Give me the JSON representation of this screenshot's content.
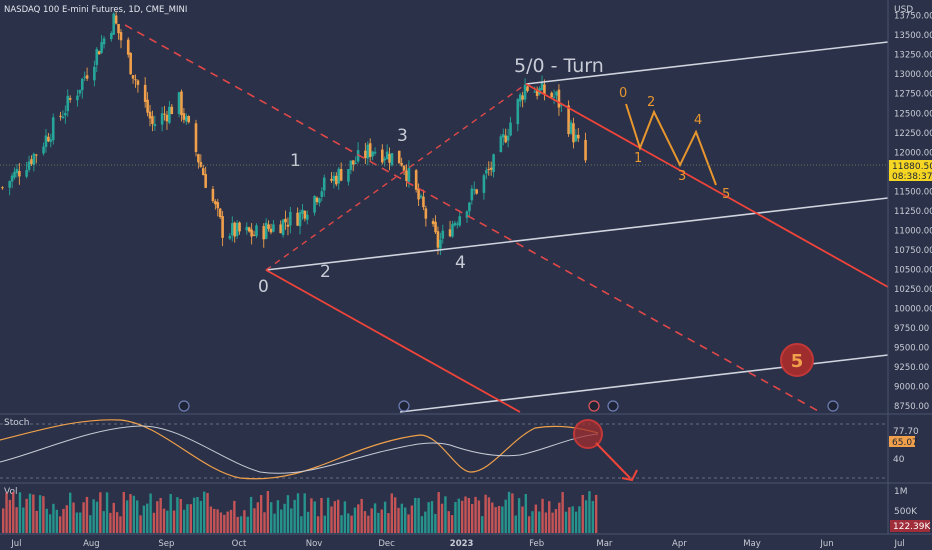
{
  "header": {
    "symbol_title": "NASDAQ 100 E-mini Futures, 1D, CME_MINI",
    "currency": "USD"
  },
  "colors": {
    "background": "#2a3148",
    "up": "#26a69a",
    "down": "#f0a04b",
    "channel_red": "#f0443a",
    "channel_white": "#d0d4de",
    "wave_orange": "#e8962e",
    "wave_label_white": "#c9ccd6",
    "stoch_k": "#f0a04b",
    "stoch_d": "#c9ccd6",
    "price_tag": "#f5d623"
  },
  "chart_data": [
    {
      "type": "candlestick",
      "name": "NASDAQ 100 E-mini Futures",
      "x_ticks": [
        "Jul",
        "Aug",
        "Sep",
        "Oct",
        "Nov",
        "Dec",
        "2023",
        "Feb",
        "Mar",
        "Apr",
        "May",
        "Jun",
        "Jul"
      ],
      "y_ticks": [
        13750.0,
        13500.0,
        13250.0,
        13000.0,
        12750.0,
        12500.0,
        12250.0,
        12000.0,
        11750.0,
        11500.0,
        11250.0,
        11000.0,
        10750.0,
        10500.0,
        10250.0,
        10000.0,
        9750.0,
        9500.0,
        9250.0,
        9000.0,
        8750.0
      ],
      "ylim": [
        8650,
        13950
      ],
      "last_price": "11880.50",
      "countdown": "08:38:37",
      "wave_labels_elliott": [
        {
          "label": "0",
          "date": "2022-10-13",
          "value": 10480
        },
        {
          "label": "1",
          "date": "2022-11-01",
          "value": 11950
        },
        {
          "label": "2",
          "date": "2022-11-10",
          "value": 10680
        },
        {
          "label": "3",
          "date": "2022-12-13",
          "value": 12350
        },
        {
          "label": "4",
          "date": "2022-12-28",
          "value": 10760
        },
        {
          "label": "5/0 - Turn",
          "date": "2023-02-02",
          "value": 13100
        }
      ],
      "projection_labels": [
        {
          "label": "0",
          "date": "2023-03-15",
          "value": 12820
        },
        {
          "label": "1",
          "date": "2023-03-22",
          "value": 12000
        },
        {
          "label": "2",
          "date": "2023-03-29",
          "value": 12720
        },
        {
          "label": "3",
          "date": "2023-04-12",
          "value": 11840
        },
        {
          "label": "4",
          "date": "2023-04-19",
          "value": 12550
        },
        {
          "label": "5",
          "date": "2023-04-28",
          "value": 11570
        }
      ],
      "circled_target_label": "5",
      "approx_candles": [
        {
          "date": "2022-07-01",
          "open": 11700,
          "high": 11800,
          "low": 11450,
          "close": 11550
        },
        {
          "date": "2022-07-15",
          "open": 11700,
          "high": 12100,
          "low": 11650,
          "close": 12000
        },
        {
          "date": "2022-08-01",
          "open": 12600,
          "high": 12900,
          "low": 12500,
          "close": 12800
        },
        {
          "date": "2022-08-16",
          "open": 13550,
          "high": 13770,
          "low": 13450,
          "close": 13700
        },
        {
          "date": "2022-09-01",
          "open": 12500,
          "high": 12600,
          "low": 12250,
          "close": 12350
        },
        {
          "date": "2022-09-12",
          "open": 12600,
          "high": 12800,
          "low": 12450,
          "close": 12650
        },
        {
          "date": "2022-09-30",
          "open": 11200,
          "high": 11300,
          "low": 10950,
          "close": 11000
        },
        {
          "date": "2022-10-13",
          "open": 10800,
          "high": 11050,
          "low": 10490,
          "close": 10950
        },
        {
          "date": "2022-11-01",
          "open": 11500,
          "high": 11700,
          "low": 11100,
          "close": 11200
        },
        {
          "date": "2022-11-10",
          "open": 10900,
          "high": 11650,
          "low": 10680,
          "close": 11550
        },
        {
          "date": "2022-12-01",
          "open": 11950,
          "high": 12150,
          "low": 11850,
          "close": 12050
        },
        {
          "date": "2022-12-13",
          "open": 11950,
          "high": 12350,
          "low": 11850,
          "close": 11900
        },
        {
          "date": "2022-12-28",
          "open": 10900,
          "high": 11000,
          "low": 10760,
          "close": 10820
        },
        {
          "date": "2023-01-20",
          "open": 11600,
          "high": 11900,
          "low": 11550,
          "close": 11850
        },
        {
          "date": "2023-02-02",
          "open": 12650,
          "high": 12960,
          "low": 12550,
          "close": 12850
        },
        {
          "date": "2023-02-15",
          "open": 12550,
          "high": 12800,
          "low": 12450,
          "close": 12700
        },
        {
          "date": "2023-02-27",
          "open": 12050,
          "high": 12150,
          "low": 11850,
          "close": 11880
        }
      ]
    },
    {
      "type": "line",
      "name": "Stoch",
      "y_ticks": [
        40.0
      ],
      "last_values": [
        "77.70",
        "65.07"
      ]
    },
    {
      "type": "bar",
      "name": "Vol",
      "y_ticks": [
        "1M",
        "500K"
      ],
      "last_value": "122.39K"
    }
  ]
}
